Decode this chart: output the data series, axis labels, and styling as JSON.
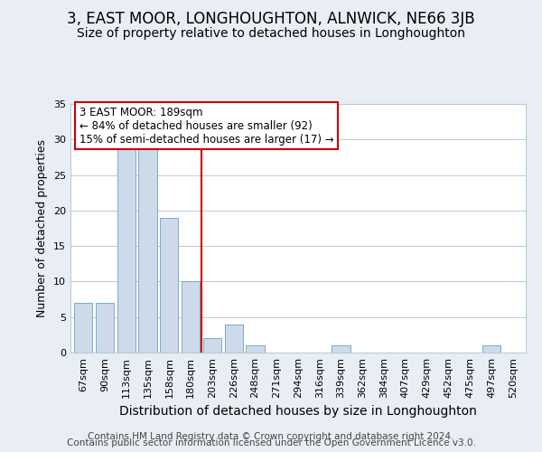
{
  "title": "3, EAST MOOR, LONGHOUGHTON, ALNWICK, NE66 3JB",
  "subtitle": "Size of property relative to detached houses in Longhoughton",
  "xlabel": "Distribution of detached houses by size in Longhoughton",
  "ylabel": "Number of detached properties",
  "bar_color": "#ccdaea",
  "bar_edge_color": "#7aaac8",
  "categories": [
    "67sqm",
    "90sqm",
    "113sqm",
    "135sqm",
    "158sqm",
    "180sqm",
    "203sqm",
    "226sqm",
    "248sqm",
    "271sqm",
    "294sqm",
    "316sqm",
    "339sqm",
    "362sqm",
    "384sqm",
    "407sqm",
    "429sqm",
    "452sqm",
    "475sqm",
    "497sqm",
    "520sqm"
  ],
  "values": [
    7,
    7,
    29,
    29,
    19,
    10,
    2,
    4,
    1,
    0,
    0,
    0,
    1,
    0,
    0,
    0,
    0,
    0,
    0,
    1,
    0
  ],
  "ylim": [
    0,
    35
  ],
  "yticks": [
    0,
    5,
    10,
    15,
    20,
    25,
    30,
    35
  ],
  "vline_x": 5.5,
  "vline_color": "#cc0000",
  "annotation_title": "3 EAST MOOR: 189sqm",
  "annotation_line1": "← 84% of detached houses are smaller (92)",
  "annotation_line2": "15% of semi-detached houses are larger (17) →",
  "annotation_box_color": "#ffffff",
  "annotation_box_edge": "#cc0000",
  "footer1": "Contains HM Land Registry data © Crown copyright and database right 2024.",
  "footer2": "Contains public sector information licensed under the Open Government Licence v3.0.",
  "background_color": "#e8eef4",
  "plot_bg_color": "#ffffff",
  "grid_color": "#b8ccd8",
  "title_fontsize": 12,
  "subtitle_fontsize": 10,
  "xlabel_fontsize": 10,
  "ylabel_fontsize": 9,
  "tick_fontsize": 8,
  "footer_fontsize": 7.5
}
